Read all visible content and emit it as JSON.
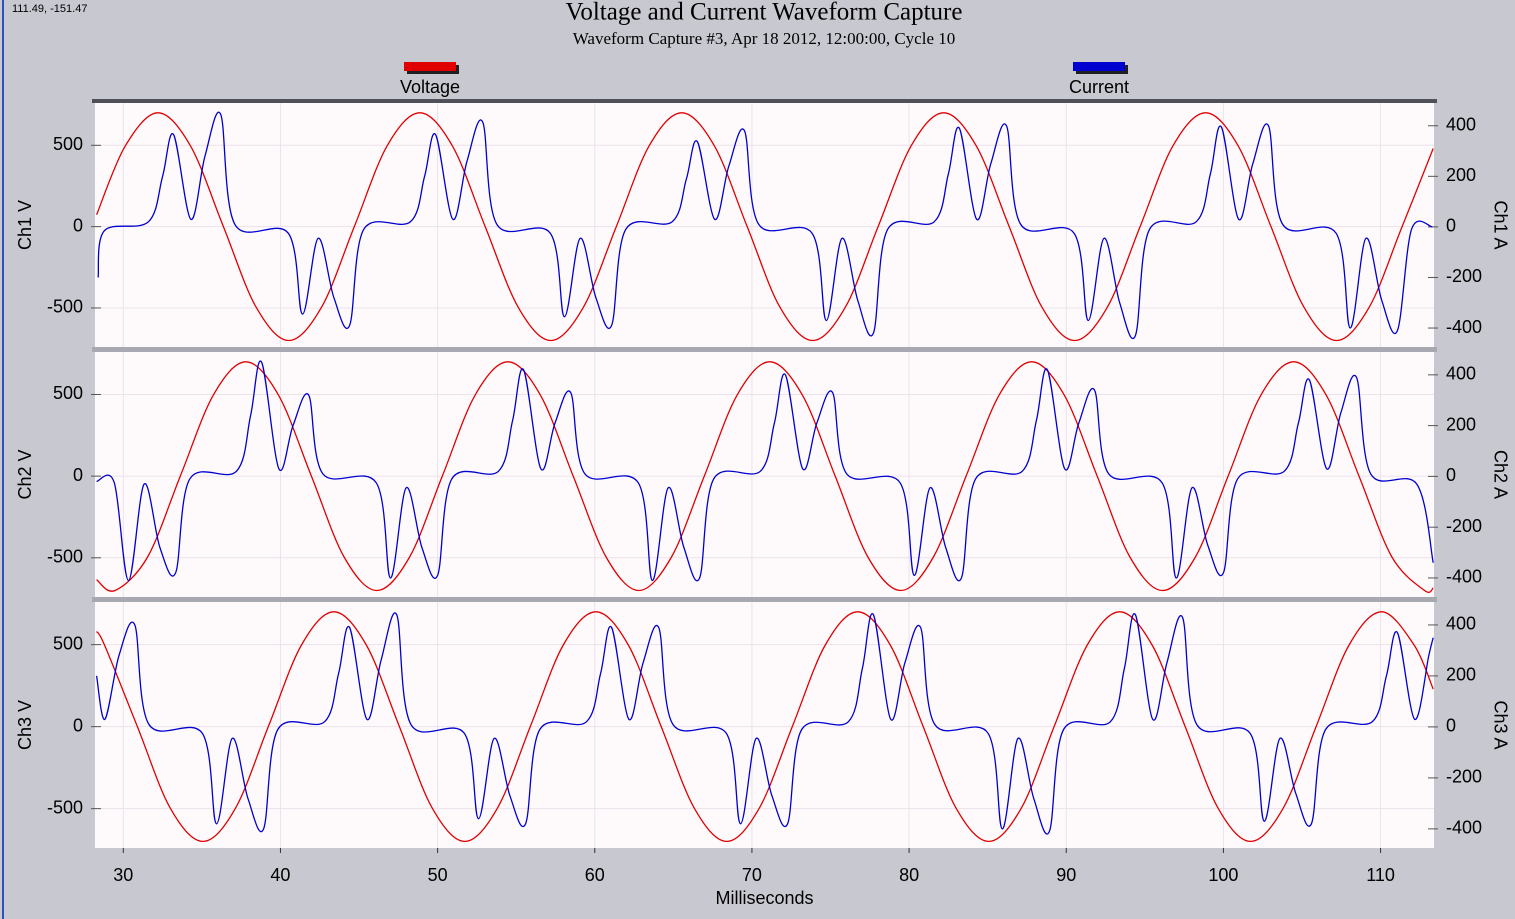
{
  "coordinates": "111.49, -151.47",
  "chart_data": [
    {
      "type": "line",
      "title": "Voltage and Current Waveform Capture",
      "subtitle": "Waveform Capture #3, Apr 18 2012, 12:00:00,  Cycle 10",
      "ylabel": "Ch1 V",
      "y2label": "Ch1 A",
      "xlim": [
        28.2,
        113.4
      ],
      "xticks": [
        30,
        40,
        50,
        60,
        70,
        80,
        90,
        100,
        110
      ],
      "ylim": [
        -740,
        760
      ],
      "yticks": [
        -500,
        0,
        500
      ],
      "y2lim": [
        -475,
        490
      ],
      "y2ticks": [
        -400,
        -200,
        0,
        200,
        400
      ],
      "grid": true,
      "series": [
        {
          "name": "Voltage",
          "color": "#e00000",
          "x": [
            28.3,
            30.12,
            32.2,
            34.28,
            36.37,
            38.45,
            40.53,
            42.62,
            44.7,
            46.78,
            48.87,
            50.95,
            53.03,
            55.12,
            57.2,
            59.28,
            61.37,
            63.45,
            65.53,
            67.62,
            69.7,
            71.78,
            73.87,
            75.95,
            78.03,
            80.12,
            82.2,
            84.28,
            86.37,
            88.45,
            90.53,
            92.62,
            94.7,
            96.78,
            98.87,
            100.95,
            103.03,
            105.12,
            107.2,
            109.28,
            111.37,
            113.35
          ],
          "values": [
            73,
            495,
            700,
            495,
            0,
            -495,
            -700,
            -495,
            0,
            495,
            700,
            495,
            0,
            -495,
            -700,
            -495,
            0,
            495,
            700,
            495,
            0,
            -495,
            -700,
            -495,
            0,
            495,
            700,
            495,
            0,
            -495,
            -700,
            -495,
            0,
            495,
            700,
            495,
            0,
            -495,
            -700,
            -495,
            0,
            480
          ]
        },
        {
          "name": "Current",
          "color": "#0000d0",
          "axis": "y2",
          "x": [
            28.4,
            28.8,
            31.6,
            32.5,
            33.2,
            34.3,
            35.2,
            36.2,
            37.1,
            40.5,
            41.4,
            42.4,
            43.4,
            44.4,
            45.3,
            48.27,
            49.17,
            49.87,
            50.97,
            51.87,
            52.87,
            53.77,
            57.17,
            58.07,
            59.07,
            60.07,
            61.07,
            61.97,
            64.93,
            65.83,
            66.53,
            67.63,
            68.53,
            69.53,
            70.43,
            73.83,
            74.73,
            75.73,
            76.73,
            77.73,
            78.63,
            81.6,
            82.5,
            83.2,
            84.3,
            85.2,
            86.2,
            87.1,
            90.5,
            91.4,
            92.4,
            93.4,
            94.4,
            95.3,
            98.27,
            99.17,
            99.87,
            100.97,
            101.87,
            102.87,
            103.77,
            107.17,
            108.07,
            109.07,
            110.07,
            111.07,
            111.97,
            113.3
          ],
          "values": [
            -200,
            -15,
            20,
            200,
            365,
            30,
            280,
            445,
            10,
            -25,
            -345,
            -45,
            -280,
            -390,
            -10,
            20,
            200,
            365,
            30,
            260,
            415,
            10,
            -25,
            -355,
            -45,
            -280,
            -390,
            -10,
            20,
            190,
            337,
            30,
            240,
            380,
            10,
            -25,
            -370,
            -45,
            -290,
            -420,
            -10,
            20,
            210,
            390,
            30,
            250,
            400,
            10,
            -25,
            -370,
            -45,
            -300,
            -430,
            -10,
            20,
            210,
            395,
            30,
            250,
            400,
            10,
            -25,
            -400,
            -45,
            -290,
            -410,
            -10,
            0
          ]
        }
      ]
    },
    {
      "type": "line",
      "ylabel": "Ch2 V",
      "y2label": "Ch2 A",
      "xlim": [
        28.2,
        113.4
      ],
      "xticks": [
        30,
        40,
        50,
        60,
        70,
        80,
        90,
        100,
        110
      ],
      "ylim": [
        -740,
        760
      ],
      "yticks": [
        -500,
        0,
        500
      ],
      "y2lim": [
        -475,
        490
      ],
      "y2ticks": [
        -400,
        -200,
        0,
        200,
        400
      ],
      "grid": true,
      "series": [
        {
          "color": "#e00000",
          "x": [
            28.3,
            29.47,
            31.55,
            33.63,
            35.72,
            37.8,
            39.88,
            41.97,
            44.05,
            46.13,
            48.22,
            50.3,
            52.38,
            54.47,
            56.55,
            58.63,
            60.72,
            62.8,
            64.88,
            66.97,
            69.05,
            71.13,
            73.22,
            75.3,
            77.38,
            79.47,
            81.55,
            83.63,
            85.72,
            87.8,
            89.88,
            91.97,
            94.05,
            96.13,
            98.22,
            100.3,
            102.38,
            104.47,
            106.55,
            108.63,
            110.72,
            112.8,
            113.35
          ],
          "values": [
            -634,
            -700,
            -495,
            0,
            495,
            700,
            495,
            0,
            -495,
            -700,
            -495,
            0,
            495,
            700,
            495,
            0,
            -495,
            -700,
            -495,
            0,
            495,
            700,
            495,
            0,
            -495,
            -700,
            -495,
            0,
            495,
            700,
            495,
            0,
            -495,
            -700,
            -495,
            0,
            495,
            700,
            495,
            0,
            -495,
            -700,
            -685
          ]
        },
        {
          "color": "#0000d0",
          "axis": "y2",
          "x": [
            28.3,
            29.43,
            30.33,
            31.33,
            32.33,
            33.33,
            34.23,
            37.2,
            38.1,
            38.8,
            39.9,
            40.8,
            41.8,
            42.7,
            46.1,
            47.0,
            48.0,
            49.0,
            50.0,
            50.9,
            53.87,
            54.77,
            55.47,
            56.57,
            57.47,
            58.47,
            59.37,
            62.77,
            63.67,
            64.67,
            65.67,
            66.67,
            67.57,
            70.53,
            71.43,
            72.13,
            73.23,
            74.13,
            75.13,
            76.03,
            79.43,
            80.33,
            81.33,
            82.33,
            83.33,
            84.23,
            87.2,
            88.1,
            88.8,
            89.9,
            90.8,
            91.8,
            92.7,
            96.1,
            97.0,
            98.0,
            99.0,
            100.0,
            100.9,
            103.87,
            104.77,
            105.47,
            106.57,
            107.47,
            108.47,
            109.37,
            112.3,
            113.35
          ],
          "values": [
            -20,
            -25,
            -410,
            -30,
            -280,
            -380,
            -10,
            20,
            240,
            450,
            30,
            200,
            320,
            10,
            -25,
            -400,
            -45,
            -280,
            -390,
            -10,
            20,
            220,
            420,
            30,
            210,
            330,
            10,
            -25,
            -410,
            -45,
            -280,
            -400,
            -10,
            20,
            210,
            400,
            30,
            210,
            330,
            10,
            -25,
            -390,
            -45,
            -280,
            -400,
            -10,
            20,
            220,
            420,
            30,
            210,
            340,
            10,
            -25,
            -400,
            -45,
            -270,
            -380,
            -10,
            20,
            210,
            380,
            30,
            250,
            390,
            10,
            -30,
            -340
          ]
        }
      ]
    },
    {
      "type": "line",
      "ylabel": "Ch3 V",
      "y2label": "Ch3 A",
      "xlabel": "Milliseconds",
      "xlim": [
        28.2,
        113.4
      ],
      "xticks": [
        30,
        40,
        50,
        60,
        70,
        80,
        90,
        100,
        110
      ],
      "ylim": [
        -740,
        760
      ],
      "yticks": [
        -500,
        0,
        500
      ],
      "y2lim": [
        -475,
        490
      ],
      "y2ticks": [
        -400,
        -200,
        0,
        200,
        400
      ],
      "grid": true,
      "series": [
        {
          "color": "#e00000",
          "x": [
            28.3,
            28.82,
            30.9,
            32.98,
            35.07,
            37.15,
            39.23,
            41.32,
            43.4,
            45.48,
            47.57,
            49.65,
            51.73,
            53.82,
            55.9,
            57.98,
            60.07,
            62.15,
            64.23,
            66.32,
            68.4,
            70.48,
            72.57,
            74.65,
            76.73,
            78.82,
            80.9,
            82.98,
            85.07,
            87.15,
            89.23,
            91.32,
            93.4,
            95.48,
            97.57,
            99.65,
            101.73,
            103.82,
            105.9,
            107.98,
            110.07,
            112.15,
            113.35
          ],
          "values": [
            580,
            495,
            0,
            -495,
            -700,
            -495,
            0,
            495,
            700,
            495,
            0,
            -495,
            -700,
            -495,
            0,
            495,
            700,
            495,
            0,
            -495,
            -700,
            -495,
            0,
            495,
            700,
            495,
            0,
            -495,
            -700,
            -495,
            0,
            495,
            700,
            495,
            0,
            -495,
            -700,
            -495,
            0,
            495,
            700,
            495,
            229
          ]
        },
        {
          "color": "#0000d0",
          "axis": "y2",
          "x": [
            28.3,
            28.83,
            29.73,
            30.73,
            31.63,
            35.03,
            35.93,
            36.93,
            37.93,
            38.93,
            39.83,
            42.8,
            43.7,
            44.4,
            45.5,
            46.4,
            47.4,
            48.3,
            51.7,
            52.6,
            53.6,
            54.6,
            55.6,
            56.5,
            59.47,
            60.37,
            61.07,
            62.17,
            63.07,
            64.07,
            64.97,
            68.37,
            69.27,
            70.27,
            71.27,
            72.27,
            73.17,
            76.13,
            77.03,
            77.73,
            78.83,
            79.73,
            80.73,
            81.63,
            85.03,
            85.93,
            86.93,
            87.93,
            88.93,
            89.83,
            92.8,
            93.7,
            94.4,
            95.5,
            96.4,
            97.4,
            98.3,
            101.7,
            102.6,
            103.6,
            104.6,
            105.6,
            106.5,
            109.47,
            110.37,
            111.07,
            112.17,
            113.07,
            113.35
          ],
          "values": [
            200,
            30,
            280,
            400,
            10,
            -25,
            -380,
            -45,
            -280,
            -400,
            -10,
            20,
            210,
            390,
            30,
            260,
            440,
            10,
            -25,
            -360,
            -45,
            -270,
            -380,
            -10,
            20,
            210,
            390,
            30,
            250,
            390,
            10,
            -25,
            -380,
            -45,
            -270,
            -380,
            -10,
            20,
            230,
            440,
            30,
            250,
            390,
            10,
            -25,
            -400,
            -45,
            -280,
            -410,
            -10,
            20,
            230,
            440,
            30,
            250,
            430,
            10,
            -25,
            -370,
            -45,
            -260,
            -380,
            -10,
            20,
            200,
            370,
            30,
            280,
            350
          ]
        }
      ]
    }
  ]
}
